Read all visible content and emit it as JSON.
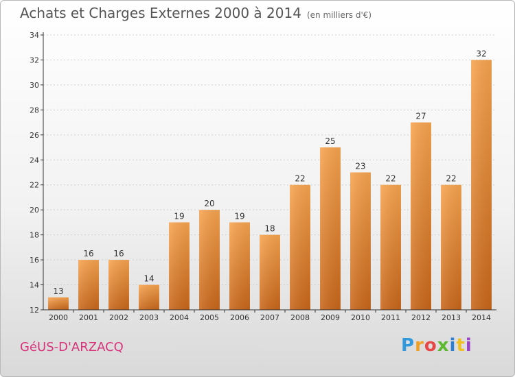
{
  "header": {
    "title": "Achats et Charges Externes 2000 à 2014",
    "subtitle": "(en milliers d'€)"
  },
  "footer": {
    "commune": "GéUS-D'ARZACQ",
    "logo_letters": [
      "P",
      "r",
      "o",
      "x",
      "i",
      "t",
      "i"
    ],
    "logo_colors": [
      "#3399dd",
      "#f0a020",
      "#e64848",
      "#5cb82e",
      "#2c7fd6",
      "#f0c020",
      "#9b3fc4"
    ]
  },
  "colors": {
    "bar_top": "#f7a44f",
    "bar_bottom": "#c8661a",
    "axis": "#333333",
    "grid": "#cfcfcf"
  },
  "chart_data": {
    "type": "bar",
    "title": "Achats et Charges Externes 2000 à 2014",
    "subtitle": "(en milliers d'€)",
    "xlabel": "",
    "ylabel": "",
    "categories": [
      "2000",
      "2001",
      "2002",
      "2003",
      "2004",
      "2005",
      "2006",
      "2007",
      "2008",
      "2009",
      "2010",
      "2011",
      "2012",
      "2013",
      "2014"
    ],
    "values": [
      13,
      16,
      16,
      14,
      19,
      20,
      19,
      18,
      22,
      25,
      23,
      22,
      27,
      22,
      32
    ],
    "ylim": [
      12,
      34
    ],
    "yticks": [
      12,
      14,
      16,
      18,
      20,
      22,
      24,
      26,
      28,
      30,
      32,
      34
    ],
    "grid": true,
    "legend": "none"
  }
}
